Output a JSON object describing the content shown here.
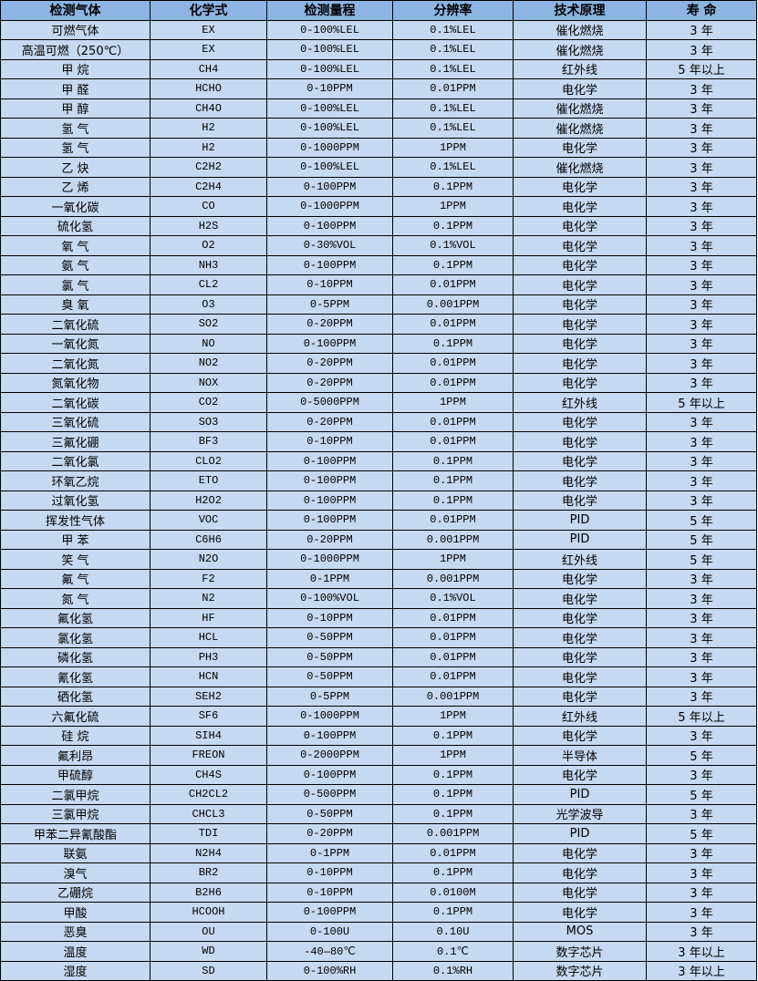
{
  "colors": {
    "header_bg": "#8db4e2",
    "cell_bg": "#c5d9f1",
    "border": "#000000"
  },
  "headers": [
    "检测气体",
    "化学式",
    "检测量程",
    "分辨率",
    "技术原理",
    "寿 命"
  ],
  "rows": [
    [
      "可燃气体",
      "EX",
      "0-100%LEL",
      "0.1%LEL",
      "催化燃烧",
      "3 年"
    ],
    [
      "高温可燃（250℃）",
      "EX",
      "0-100%LEL",
      "0.1%LEL",
      "催化燃烧",
      "3 年"
    ],
    [
      "甲 烷",
      "CH4",
      "0-100%LEL",
      "0.1%LEL",
      "红外线",
      "5 年以上"
    ],
    [
      "甲 醛",
      "HCHO",
      "0-10PPM",
      "0.01PPM",
      "电化学",
      "3 年"
    ],
    [
      "甲 醇",
      "CH4O",
      "0-100%LEL",
      "0.1%LEL",
      "催化燃烧",
      "3 年"
    ],
    [
      "氢 气",
      "H2",
      "0-100%LEL",
      "0.1%LEL",
      "催化燃烧",
      "3 年"
    ],
    [
      "氢 气",
      "H2",
      "0-1000PPM",
      "1PPM",
      "电化学",
      "3 年"
    ],
    [
      "乙 炔",
      "C2H2",
      "0-100%LEL",
      "0.1%LEL",
      "催化燃烧",
      "3 年"
    ],
    [
      "乙 烯",
      "C2H4",
      "0-100PPM",
      "0.1PPM",
      "电化学",
      "3 年"
    ],
    [
      "一氧化碳",
      "CO",
      "0-1000PPM",
      "1PPM",
      "电化学",
      "3 年"
    ],
    [
      "硫化氢",
      "H2S",
      "0-100PPM",
      "0.1PPM",
      "电化学",
      "3 年"
    ],
    [
      "氧 气",
      "O2",
      "0-30%VOL",
      "0.1%VOL",
      "电化学",
      "3 年"
    ],
    [
      "氨 气",
      "NH3",
      "0-100PPM",
      "0.1PPM",
      "电化学",
      "3 年"
    ],
    [
      "氯 气",
      "CL2",
      "0-10PPM",
      "0.01PPM",
      "电化学",
      "3 年"
    ],
    [
      "臭 氧",
      "O3",
      "0-5PPM",
      "0.001PPM",
      "电化学",
      "3 年"
    ],
    [
      "二氧化硫",
      "SO2",
      "0-20PPM",
      "0.01PPM",
      "电化学",
      "3 年"
    ],
    [
      "一氧化氮",
      "NO",
      "0-100PPM",
      "0.1PPM",
      "电化学",
      "3 年"
    ],
    [
      "二氧化氮",
      "NO2",
      "0-20PPM",
      "0.01PPM",
      "电化学",
      "3 年"
    ],
    [
      "氮氧化物",
      "NOX",
      "0-20PPM",
      "0.01PPM",
      "电化学",
      "3 年"
    ],
    [
      "二氧化碳",
      "CO2",
      "0-5000PPM",
      "1PPM",
      "红外线",
      "5 年以上"
    ],
    [
      "三氧化硫",
      "SO3",
      "0-20PPM",
      "0.01PPM",
      "电化学",
      "3 年"
    ],
    [
      "三氟化硼",
      "BF3",
      "0-10PPM",
      "0.01PPM",
      "电化学",
      "3 年"
    ],
    [
      "二氧化氯",
      "CLO2",
      "0-100PPM",
      "0.1PPM",
      "电化学",
      "3 年"
    ],
    [
      "环氧乙烷",
      "ETO",
      "0-100PPM",
      "0.1PPM",
      "电化学",
      "3 年"
    ],
    [
      "过氧化氢",
      "H2O2",
      "0-100PPM",
      "0.1PPM",
      "电化学",
      "3 年"
    ],
    [
      "挥发性气体",
      "VOC",
      "0-100PPM",
      "0.01PPM",
      "PID",
      "5 年"
    ],
    [
      "甲 苯",
      "C6H6",
      "0-20PPM",
      "0.001PPM",
      "PID",
      "5 年"
    ],
    [
      "笑 气",
      "N2O",
      "0-1000PPM",
      "1PPM",
      "红外线",
      "5 年"
    ],
    [
      "氟 气",
      "F2",
      "0-1PPM",
      "0.001PPM",
      "电化学",
      "3 年"
    ],
    [
      "氮 气",
      "N2",
      "0-100%VOL",
      "0.1%VOL",
      "电化学",
      "3 年"
    ],
    [
      "氟化氢",
      "HF",
      "0-10PPM",
      "0.01PPM",
      "电化学",
      "3 年"
    ],
    [
      "氯化氢",
      "HCL",
      "0-50PPM",
      "0.01PPM",
      "电化学",
      "3 年"
    ],
    [
      "磷化氢",
      "PH3",
      "0-50PPM",
      "0.01PPM",
      "电化学",
      "3 年"
    ],
    [
      "氰化氢",
      "HCN",
      "0-50PPM",
      "0.01PPM",
      "电化学",
      "3 年"
    ],
    [
      "硒化氢",
      "SEH2",
      "0-5PPM",
      "0.001PPM",
      "电化学",
      "3 年"
    ],
    [
      "六氟化硫",
      "SF6",
      "0-1000PPM",
      "1PPM",
      "红外线",
      "5 年以上"
    ],
    [
      "硅 烷",
      "SIH4",
      "0-100PPM",
      "0.1PPM",
      "电化学",
      "3 年"
    ],
    [
      "氟利昂",
      "FREON",
      "0-2000PPM",
      "1PPM",
      "半导体",
      "5 年"
    ],
    [
      "甲硫醇",
      "CH4S",
      "0-100PPM",
      "0.1PPM",
      "电化学",
      "3 年"
    ],
    [
      "二氯甲烷",
      "CH2CL2",
      "0-500PPM",
      "0.1PPM",
      "PID",
      "5 年"
    ],
    [
      "三氯甲烷",
      "CHCL3",
      "0-50PPM",
      "0.1PPM",
      "光学波导",
      "3 年"
    ],
    [
      "甲苯二异氰酸酯",
      "TDI",
      "0-20PPM",
      "0.001PPM",
      "PID",
      "5 年"
    ],
    [
      "联氨",
      "N2H4",
      "0-1PPM",
      "0.01PPM",
      "电化学",
      "3 年"
    ],
    [
      "溴气",
      "BR2",
      "0-10PPM",
      "0.1PPM",
      "电化学",
      "3 年"
    ],
    [
      "乙硼烷",
      "B2H6",
      "0-10PPM",
      "0.0100M",
      "电化学",
      "3 年"
    ],
    [
      "甲酸",
      "HCOOH",
      "0-100PPM",
      "0.1PPM",
      "电化学",
      "3 年"
    ],
    [
      "恶臭",
      "OU",
      "0-100U",
      "0.10U",
      "MOS",
      "3 年"
    ],
    [
      "温度",
      "WD",
      "-40—80℃",
      "0.1℃",
      "数字芯片",
      "3 年以上"
    ],
    [
      "湿度",
      "SD",
      "0-100%RH",
      "0.1%RH",
      "数字芯片",
      "3 年以上"
    ]
  ]
}
